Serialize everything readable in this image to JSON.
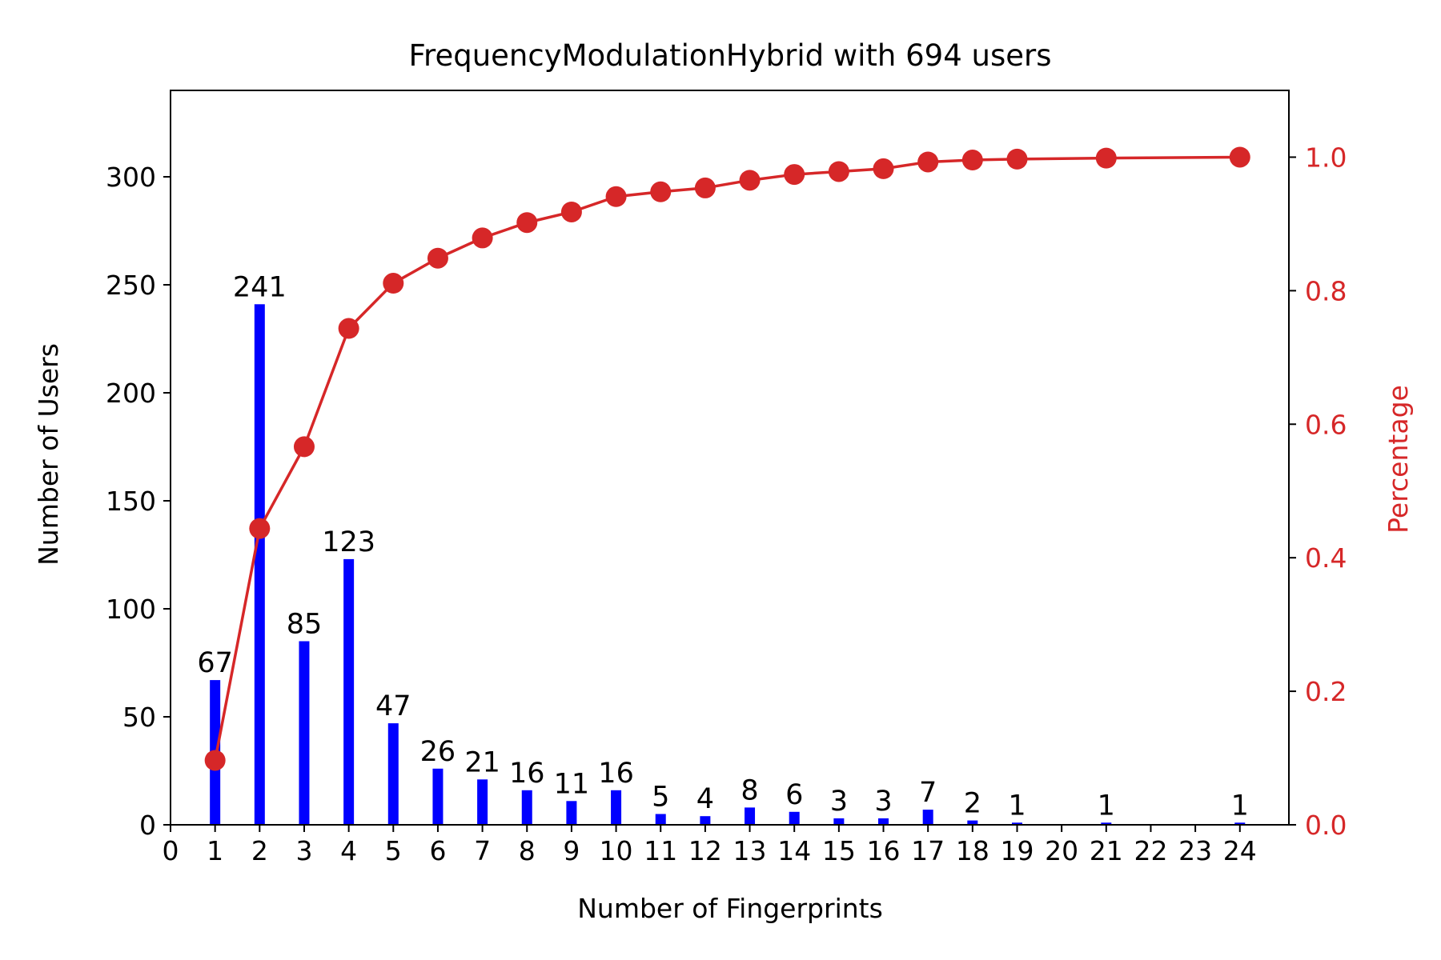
{
  "chart_data": {
    "type": "bar",
    "title": "FrequencyModulationHybrid with 694 users",
    "xlabel": "Number of Fingerprints",
    "ylabel": "Number of Users",
    "y2label": "Percentage",
    "xlim": [
      0,
      25.1
    ],
    "ylim": [
      0,
      340
    ],
    "y2lim": [
      0,
      1.1
    ],
    "x_ticks": [
      "0",
      "1",
      "2",
      "3",
      "4",
      "5",
      "6",
      "7",
      "8",
      "9",
      "10",
      "11",
      "12",
      "13",
      "14",
      "15",
      "16",
      "17",
      "18",
      "19",
      "20",
      "21",
      "22",
      "23",
      "24"
    ],
    "y_ticks": [
      "0",
      "50",
      "100",
      "150",
      "200",
      "250",
      "300"
    ],
    "y2_ticks": [
      "0.0",
      "0.2",
      "0.4",
      "0.6",
      "0.8",
      "1.0"
    ],
    "grid": false,
    "series": [
      {
        "kind": "bar",
        "color": "#0000ff",
        "x": [
          1,
          2,
          3,
          4,
          5,
          6,
          7,
          8,
          9,
          10,
          11,
          12,
          13,
          14,
          15,
          16,
          17,
          18,
          19,
          21,
          24
        ],
        "values": [
          67,
          241,
          85,
          123,
          47,
          26,
          21,
          16,
          11,
          16,
          5,
          4,
          8,
          6,
          3,
          3,
          7,
          2,
          1,
          1,
          1
        ],
        "labels": [
          "67",
          "241",
          "85",
          "123",
          "47",
          "26",
          "21",
          "16",
          "11",
          "16",
          "5",
          "4",
          "8",
          "6",
          "3",
          "3",
          "7",
          "2",
          "1",
          "1",
          "1"
        ]
      },
      {
        "kind": "line",
        "axis": "right",
        "color": "#d62728",
        "x": [
          1,
          2,
          3,
          4,
          5,
          6,
          7,
          8,
          9,
          10,
          11,
          12,
          13,
          14,
          15,
          16,
          17,
          18,
          19,
          21,
          24
        ],
        "values": [
          0.0965,
          0.4438,
          0.5663,
          0.7435,
          0.8112,
          0.8487,
          0.879,
          0.902,
          0.9179,
          0.9409,
          0.9481,
          0.9539,
          0.9654,
          0.9741,
          0.9784,
          0.9827,
          0.9928,
          0.9957,
          0.9971,
          0.9986,
          1.0
        ]
      }
    ]
  }
}
